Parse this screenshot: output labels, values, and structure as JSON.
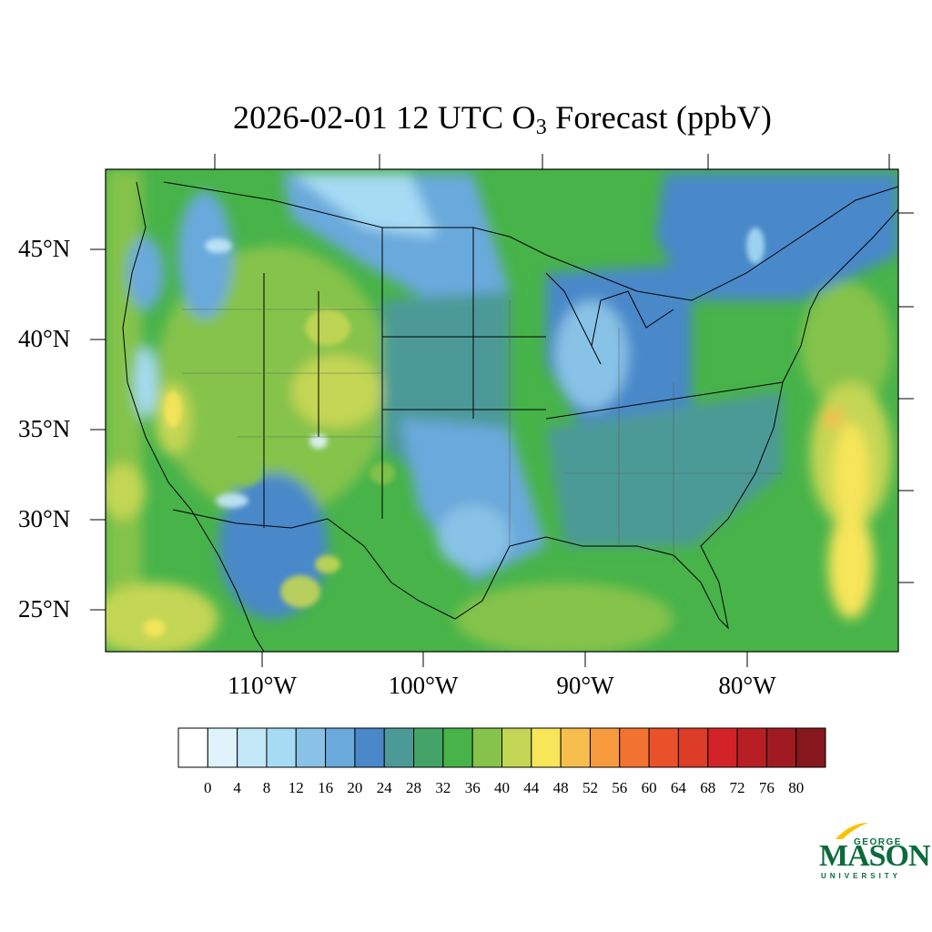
{
  "title": {
    "main": "2026-02-01 12 UTC O",
    "subscript": "3",
    "suffix": " Forecast (ppbV)"
  },
  "map": {
    "region": "CONUS",
    "lat_range": [
      22.5,
      49.5
    ],
    "lon_range": [
      -125,
      -66
    ],
    "lat_labels": [
      "45°N",
      "40°N",
      "35°N",
      "30°N",
      "25°N"
    ],
    "lon_labels": [
      "110°W",
      "100°W",
      "90°W",
      "80°W"
    ]
  },
  "colorbar": {
    "levels": [
      "0",
      "4",
      "8",
      "12",
      "16",
      "20",
      "24",
      "28",
      "32",
      "36",
      "40",
      "44",
      "48",
      "52",
      "56",
      "60",
      "64",
      "68",
      "72",
      "76",
      "80"
    ],
    "colors": [
      "#ffffff",
      "#def3fb",
      "#c2e8f7",
      "#a6dbf4",
      "#88c2e6",
      "#6aa9dc",
      "#4a88c9",
      "#4c9a97",
      "#44a366",
      "#47b349",
      "#85c34b",
      "#c4d655",
      "#f7e55a",
      "#f8be4d",
      "#f79a3e",
      "#f27331",
      "#e8512a",
      "#dc3b26",
      "#d22328",
      "#b81f24",
      "#a01b21",
      "#86171c"
    ]
  },
  "logo": {
    "top": "GEORGE",
    "main": "MASON",
    "bottom": "UNIVERSITY"
  }
}
